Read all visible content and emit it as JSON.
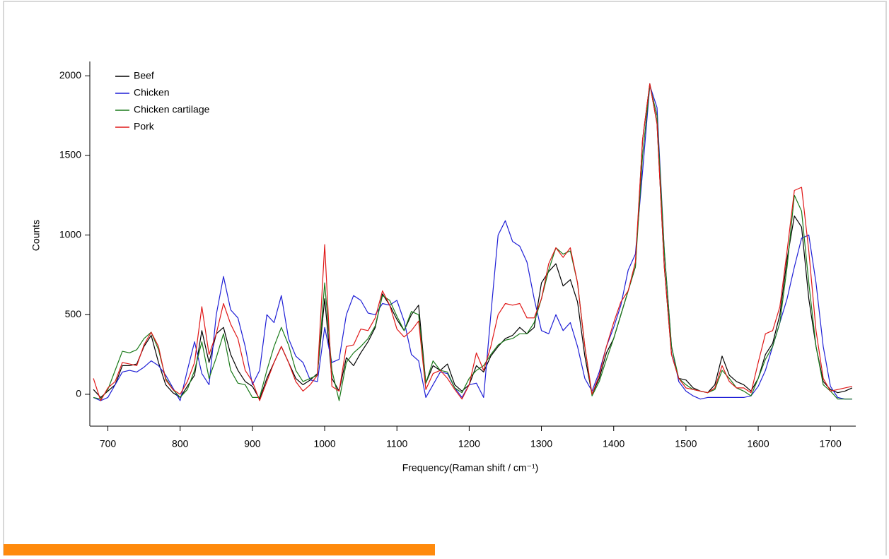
{
  "chart_data": {
    "type": "line",
    "xlabel": "Frequency(Raman shift / cm⁻¹)",
    "ylabel": "Counts",
    "xlim": [
      675,
      1735
    ],
    "ylim": [
      -200,
      2090
    ],
    "xticks": [
      700,
      800,
      900,
      1000,
      1100,
      1200,
      1300,
      1400,
      1500,
      1600,
      1700
    ],
    "yticks": [
      0,
      500,
      1000,
      1500,
      2000
    ],
    "legend": "upper-left",
    "x": [
      680,
      690,
      700,
      710,
      720,
      730,
      740,
      750,
      760,
      770,
      780,
      790,
      800,
      810,
      820,
      830,
      840,
      850,
      860,
      870,
      880,
      890,
      900,
      910,
      920,
      930,
      940,
      950,
      960,
      970,
      980,
      990,
      1000,
      1010,
      1020,
      1030,
      1040,
      1050,
      1060,
      1070,
      1080,
      1090,
      1100,
      1110,
      1120,
      1130,
      1140,
      1150,
      1160,
      1170,
      1180,
      1190,
      1200,
      1210,
      1220,
      1230,
      1240,
      1250,
      1260,
      1270,
      1280,
      1290,
      1300,
      1310,
      1320,
      1330,
      1340,
      1350,
      1360,
      1370,
      1380,
      1390,
      1400,
      1410,
      1420,
      1430,
      1440,
      1450,
      1460,
      1470,
      1480,
      1490,
      1500,
      1510,
      1520,
      1530,
      1540,
      1550,
      1560,
      1570,
      1580,
      1590,
      1600,
      1610,
      1620,
      1630,
      1640,
      1650,
      1660,
      1670,
      1680,
      1690,
      1700,
      1710,
      1720,
      1730
    ],
    "series": [
      {
        "name": "Beef",
        "color": "#000000",
        "values": [
          30,
          -20,
          20,
          60,
          180,
          180,
          190,
          300,
          370,
          200,
          60,
          10,
          -20,
          50,
          120,
          400,
          200,
          380,
          420,
          250,
          150,
          80,
          50,
          -30,
          100,
          200,
          300,
          200,
          100,
          60,
          90,
          130,
          600,
          100,
          20,
          230,
          180,
          260,
          330,
          420,
          630,
          560,
          470,
          400,
          500,
          560,
          70,
          180,
          150,
          190,
          60,
          20,
          60,
          180,
          140,
          240,
          300,
          350,
          370,
          420,
          380,
          420,
          700,
          770,
          820,
          680,
          720,
          580,
          240,
          0,
          100,
          260,
          350,
          500,
          650,
          800,
          1600,
          1950,
          1700,
          800,
          250,
          100,
          90,
          40,
          20,
          10,
          60,
          240,
          120,
          80,
          60,
          20,
          100,
          250,
          320,
          500,
          850,
          1120,
          1050,
          600,
          300,
          80,
          30,
          10,
          20,
          40
        ]
      },
      {
        "name": "Chicken",
        "color": "#1f1fd6",
        "values": [
          -20,
          -40,
          -20,
          60,
          140,
          150,
          140,
          170,
          210,
          180,
          120,
          40,
          -40,
          150,
          330,
          130,
          60,
          500,
          740,
          530,
          480,
          300,
          60,
          150,
          500,
          450,
          620,
          350,
          240,
          200,
          90,
          80,
          420,
          200,
          220,
          500,
          620,
          590,
          510,
          500,
          570,
          560,
          590,
          460,
          250,
          210,
          -20,
          60,
          140,
          130,
          40,
          -20,
          60,
          70,
          -20,
          500,
          1000,
          1090,
          960,
          930,
          830,
          600,
          400,
          380,
          500,
          400,
          450,
          300,
          100,
          20,
          140,
          300,
          420,
          560,
          780,
          880,
          1400,
          1940,
          1800,
          900,
          300,
          80,
          20,
          -10,
          -30,
          -20,
          -20,
          -20,
          -20,
          -20,
          -20,
          -10,
          50,
          150,
          300,
          450,
          600,
          800,
          980,
          1000,
          700,
          300,
          50,
          -20,
          -30,
          -30
        ]
      },
      {
        "name": "Chicken cartilage",
        "color": "#1a7a1a",
        "values": [
          -20,
          -30,
          30,
          150,
          270,
          260,
          280,
          350,
          390,
          280,
          100,
          30,
          -20,
          30,
          150,
          330,
          100,
          230,
          380,
          150,
          70,
          60,
          -20,
          -20,
          150,
          300,
          420,
          310,
          150,
          80,
          100,
          120,
          700,
          150,
          -40,
          200,
          260,
          300,
          350,
          430,
          620,
          590,
          490,
          400,
          520,
          500,
          70,
          210,
          150,
          140,
          40,
          10,
          100,
          150,
          180,
          250,
          310,
          340,
          350,
          380,
          380,
          450,
          600,
          780,
          920,
          880,
          900,
          700,
          300,
          -10,
          80,
          220,
          350,
          500,
          650,
          800,
          1500,
          1940,
          1750,
          900,
          300,
          100,
          60,
          30,
          20,
          10,
          30,
          150,
          100,
          40,
          20,
          -10,
          100,
          220,
          300,
          450,
          800,
          1250,
          1150,
          700,
          300,
          60,
          20,
          -30,
          -30,
          -30
        ]
      },
      {
        "name": "Pork",
        "color": "#e01818",
        "values": [
          100,
          -40,
          40,
          80,
          200,
          190,
          180,
          310,
          390,
          300,
          90,
          30,
          0,
          80,
          200,
          550,
          250,
          380,
          570,
          440,
          350,
          150,
          80,
          -40,
          80,
          200,
          300,
          200,
          80,
          20,
          60,
          120,
          940,
          50,
          20,
          300,
          310,
          410,
          400,
          480,
          650,
          560,
          410,
          360,
          400,
          460,
          30,
          130,
          150,
          100,
          30,
          -30,
          60,
          260,
          150,
          300,
          500,
          570,
          560,
          570,
          480,
          480,
          600,
          820,
          920,
          860,
          920,
          700,
          300,
          0,
          120,
          300,
          450,
          580,
          650,
          830,
          1600,
          1950,
          1700,
          800,
          250,
          100,
          40,
          30,
          20,
          10,
          40,
          180,
          80,
          40,
          40,
          10,
          200,
          380,
          400,
          550,
          900,
          1280,
          1300,
          900,
          400,
          100,
          20,
          30,
          40,
          50
        ]
      }
    ]
  }
}
